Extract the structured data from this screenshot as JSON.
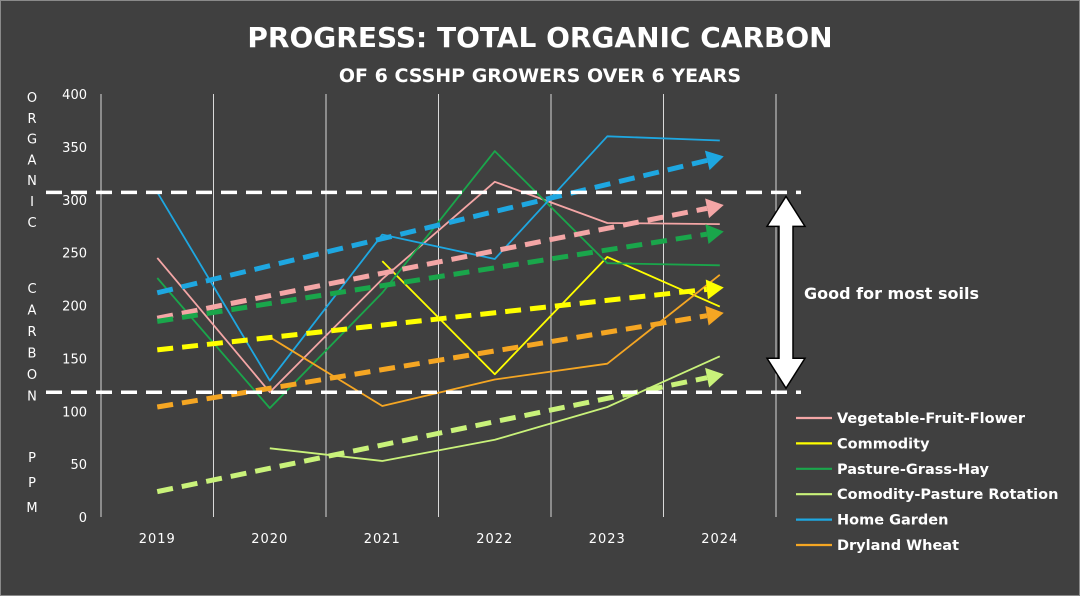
{
  "chart_data": {
    "type": "line",
    "title": "PROGRESS: TOTAL ORGANIC CARBON",
    "subtitle": "OF 6 CSSHP GROWERS OVER 6 YEARS",
    "ylabel_line1": "ORGANIC",
    "ylabel_line2": "CARBON",
    "ylabel_line3": "PPM",
    "ylim": [
      0,
      400
    ],
    "yticks": [
      0,
      50,
      100,
      150,
      200,
      250,
      300,
      350,
      400
    ],
    "categories": [
      "2019",
      "2020",
      "2021",
      "2022",
      "2023",
      "2024"
    ],
    "legend_position": "bottom-right",
    "grid": "vertical",
    "series": [
      {
        "name": "Vegetable-Fruit-Flower",
        "color": "#f4a6a6",
        "values": [
          245,
          118,
          225,
          317,
          278,
          277
        ],
        "trend": [
          188,
          295
        ]
      },
      {
        "name": "Commodity",
        "color": "#ffff00",
        "values": [
          null,
          null,
          242,
          135,
          246,
          199
        ],
        "trend": [
          158,
          217
        ]
      },
      {
        "name": "Pasture-Grass-Hay",
        "color": "#1aa64b",
        "values": [
          226,
          103,
          212,
          346,
          240,
          238
        ],
        "trend": [
          185,
          270
        ]
      },
      {
        "name": "Comodity-Pasture Rotation",
        "color": "#c9f27a",
        "values": [
          null,
          65,
          53,
          73,
          104,
          152
        ],
        "trend": [
          24,
          135
        ]
      },
      {
        "name": "Home Garden",
        "color": "#1ea7e1",
        "values": [
          307,
          129,
          267,
          244,
          360,
          356
        ],
        "trend": [
          212,
          341
        ]
      },
      {
        "name": "Dryland Wheat",
        "color": "#f5a623",
        "values": [
          null,
          170,
          105,
          130,
          145,
          229
        ],
        "trend": [
          104,
          193
        ]
      }
    ],
    "reference_lines": [
      118,
      307
    ],
    "annotation": "Good for most soils",
    "annotation_range": [
      118,
      307
    ]
  }
}
